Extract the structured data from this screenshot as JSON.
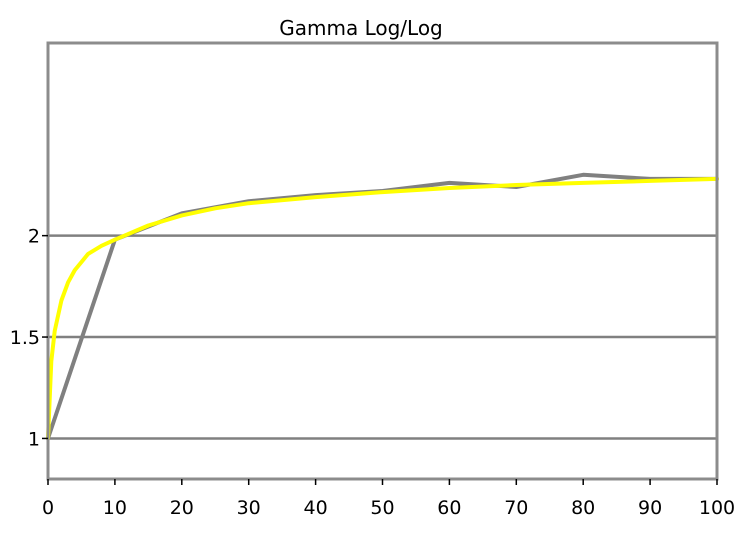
{
  "chart_data": {
    "type": "line",
    "title": "Gamma Log/Log",
    "xlabel": "",
    "ylabel": "",
    "xlim": [
      0,
      100
    ],
    "ylim": [
      0.8,
      2.95
    ],
    "x_ticks": [
      0,
      10,
      20,
      30,
      40,
      50,
      60,
      70,
      80,
      90,
      100
    ],
    "y_ticks": [
      1,
      1.5,
      2
    ],
    "y_tick_labels": [
      "1",
      "1.5",
      "2"
    ],
    "grid": "horizontal",
    "legend": "none",
    "series": [
      {
        "color": "#808080",
        "x": [
          0,
          10,
          20,
          30,
          40,
          50,
          60,
          70,
          80,
          90,
          100
        ],
        "y": [
          1.0,
          1.98,
          2.11,
          2.17,
          2.2,
          2.22,
          2.26,
          2.24,
          2.3,
          2.28,
          2.28
        ]
      },
      {
        "color": "#ffff00",
        "x": [
          0,
          0.5,
          1,
          2,
          3,
          4,
          5,
          6,
          8,
          10,
          15,
          20,
          25,
          30,
          40,
          50,
          60,
          70,
          80,
          90,
          100
        ],
        "y": [
          1.0,
          1.38,
          1.53,
          1.68,
          1.77,
          1.83,
          1.87,
          1.91,
          1.95,
          1.98,
          2.05,
          2.1,
          2.135,
          2.16,
          2.19,
          2.215,
          2.235,
          2.25,
          2.26,
          2.27,
          2.28
        ]
      }
    ]
  }
}
